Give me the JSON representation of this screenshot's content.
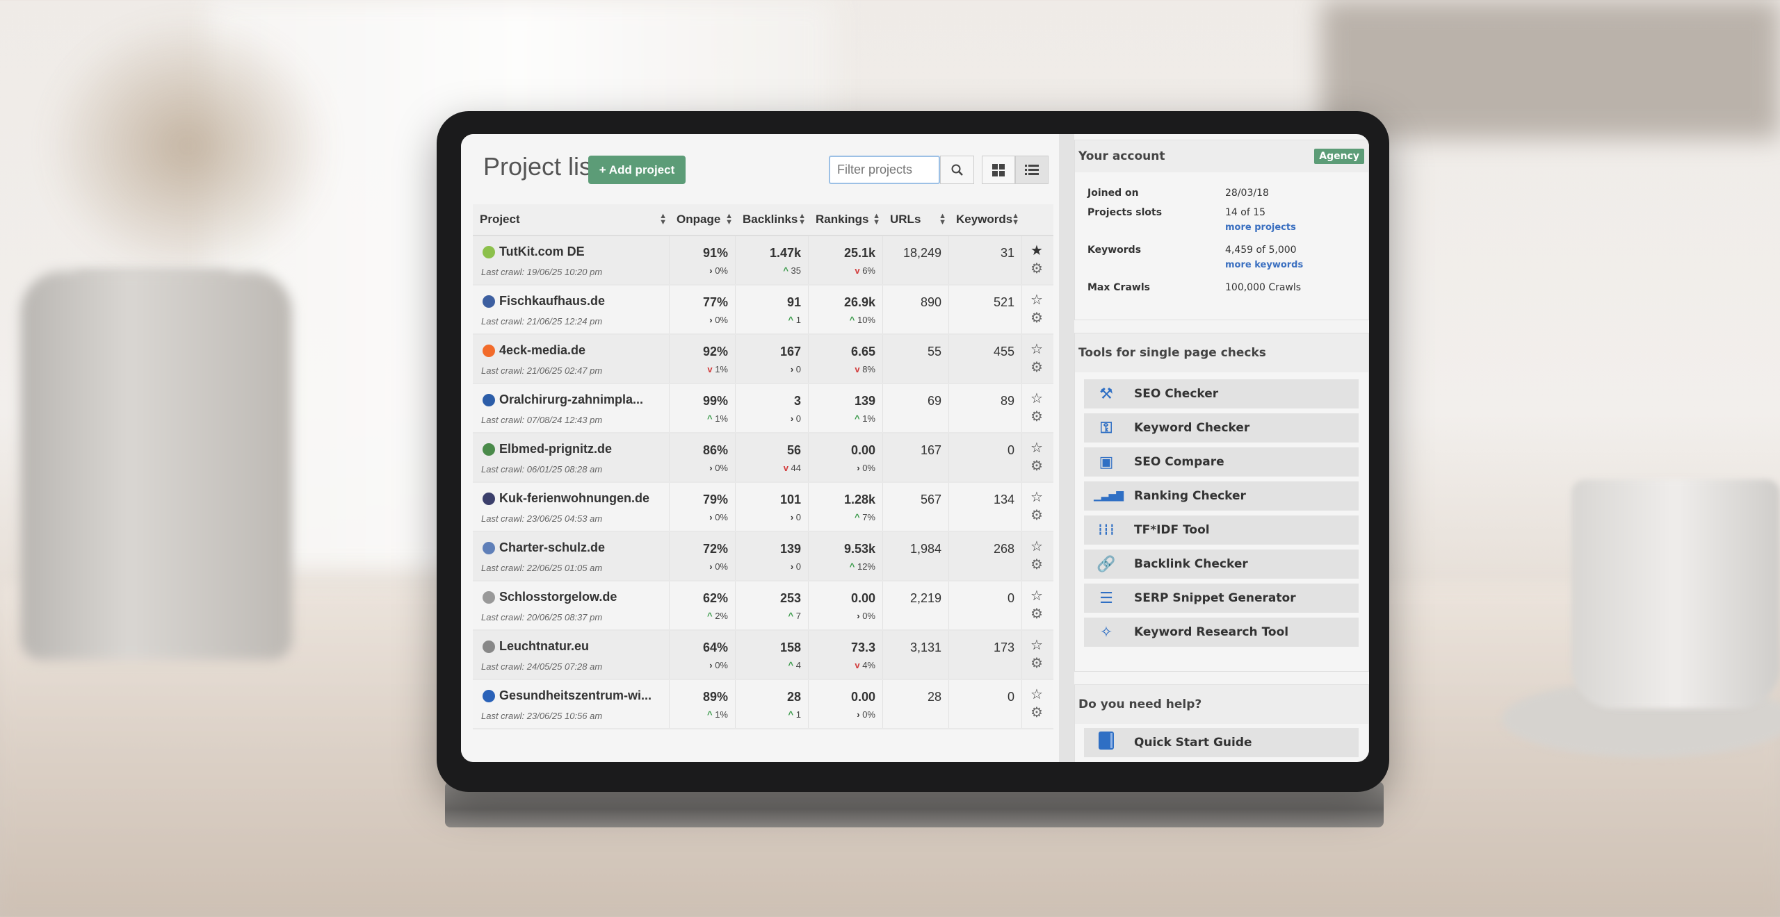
{
  "header": {
    "title": "Project list",
    "add_label": "+ Add project",
    "filter_placeholder": "Filter projects",
    "search_icon": "search-icon",
    "view_grid_icon": "grid-view-icon",
    "view_list_icon": "list-view-icon"
  },
  "table": {
    "columns": [
      "Project",
      "Onpage",
      "Backlinks",
      "Rankings",
      "URLs",
      "Keywords"
    ],
    "rows": [
      {
        "name": "TutKit.com DE",
        "icon_color": "#8cc04b",
        "crawl": "Last crawl: 19/06/25 10:20 pm",
        "onpage": "91%",
        "onpage_trend": "flat",
        "onpage_delta": "0%",
        "backlinks": "1.47k",
        "backlinks_trend": "up",
        "backlinks_delta": "35",
        "rankings": "25.1k",
        "rankings_trend": "down",
        "rankings_delta": "6%",
        "urls": "18,249",
        "keywords": "31",
        "starred": true
      },
      {
        "name": "Fischkaufhaus.de",
        "icon_color": "#3d5fa0",
        "crawl": "Last crawl: 21/06/25 12:24 pm",
        "onpage": "77%",
        "onpage_trend": "flat",
        "onpage_delta": "0%",
        "backlinks": "91",
        "backlinks_trend": "up",
        "backlinks_delta": "1",
        "rankings": "26.9k",
        "rankings_trend": "up",
        "rankings_delta": "10%",
        "urls": "890",
        "keywords": "521",
        "starred": false
      },
      {
        "name": "4eck-media.de",
        "icon_color": "#f26b2a",
        "crawl": "Last crawl: 21/06/25 02:47 pm",
        "onpage": "92%",
        "onpage_trend": "down",
        "onpage_delta": "1%",
        "backlinks": "167",
        "backlinks_trend": "flat",
        "backlinks_delta": "0",
        "rankings": "6.65",
        "rankings_trend": "down",
        "rankings_delta": "8%",
        "urls": "55",
        "keywords": "455",
        "starred": false
      },
      {
        "name": "Oralchirurg-zahnimpla...",
        "icon_color": "#2c5da8",
        "crawl": "Last crawl: 07/08/24 12:43 pm",
        "onpage": "99%",
        "onpage_trend": "up",
        "onpage_delta": "1%",
        "backlinks": "3",
        "backlinks_trend": "flat",
        "backlinks_delta": "0",
        "rankings": "139",
        "rankings_trend": "up",
        "rankings_delta": "1%",
        "urls": "69",
        "keywords": "89",
        "starred": false
      },
      {
        "name": "Elbmed-prignitz.de",
        "icon_color": "#4a8a4a",
        "crawl": "Last crawl: 06/01/25 08:28 am",
        "onpage": "86%",
        "onpage_trend": "flat",
        "onpage_delta": "0%",
        "backlinks": "56",
        "backlinks_trend": "down",
        "backlinks_delta": "44",
        "rankings": "0.00",
        "rankings_trend": "flat",
        "rankings_delta": "0%",
        "urls": "167",
        "keywords": "0",
        "starred": false
      },
      {
        "name": "Kuk-ferienwohnungen.de",
        "icon_color": "#3b3f6b",
        "crawl": "Last crawl: 23/06/25 04:53 am",
        "onpage": "79%",
        "onpage_trend": "flat",
        "onpage_delta": "0%",
        "backlinks": "101",
        "backlinks_trend": "flat",
        "backlinks_delta": "0",
        "rankings": "1.28k",
        "rankings_trend": "up",
        "rankings_delta": "7%",
        "urls": "567",
        "keywords": "134",
        "starred": false
      },
      {
        "name": "Charter-schulz.de",
        "icon_color": "#5f7fb8",
        "crawl": "Last crawl: 22/06/25 01:05 am",
        "onpage": "72%",
        "onpage_trend": "flat",
        "onpage_delta": "0%",
        "backlinks": "139",
        "backlinks_trend": "flat",
        "backlinks_delta": "0",
        "rankings": "9.53k",
        "rankings_trend": "up",
        "rankings_delta": "12%",
        "urls": "1,984",
        "keywords": "268",
        "starred": false
      },
      {
        "name": "Schlosstorgelow.de",
        "icon_color": "#999999",
        "crawl": "Last crawl: 20/06/25 08:37 pm",
        "onpage": "62%",
        "onpage_trend": "up",
        "onpage_delta": "2%",
        "backlinks": "253",
        "backlinks_trend": "up",
        "backlinks_delta": "7",
        "rankings": "0.00",
        "rankings_trend": "flat",
        "rankings_delta": "0%",
        "urls": "2,219",
        "keywords": "0",
        "starred": false
      },
      {
        "name": "Leuchtnatur.eu",
        "icon_color": "#888888",
        "crawl": "Last crawl: 24/05/25 07:28 am",
        "onpage": "64%",
        "onpage_trend": "flat",
        "onpage_delta": "0%",
        "backlinks": "158",
        "backlinks_trend": "up",
        "backlinks_delta": "4",
        "rankings": "73.3",
        "rankings_trend": "down",
        "rankings_delta": "4%",
        "urls": "3,131",
        "keywords": "173",
        "starred": false
      },
      {
        "name": "Gesundheitszentrum-wi...",
        "icon_color": "#2a62b8",
        "crawl": "Last crawl: 23/06/25 10:56 am",
        "onpage": "89%",
        "onpage_trend": "up",
        "onpage_delta": "1%",
        "backlinks": "28",
        "backlinks_trend": "up",
        "backlinks_delta": "1",
        "rankings": "0.00",
        "rankings_trend": "flat",
        "rankings_delta": "0%",
        "urls": "28",
        "keywords": "0",
        "starred": false
      }
    ]
  },
  "account": {
    "title": "Your account",
    "plan_badge": "Agency",
    "joined_label": "Joined on",
    "joined_value": "28/03/18",
    "slots_label": "Projects slots",
    "slots_value": "14 of 15",
    "more_projects": "more projects",
    "keywords_label": "Keywords",
    "keywords_value": "4,459 of 5,000",
    "more_keywords": "more keywords",
    "crawls_label": "Max Crawls",
    "crawls_value": "100,000 Crawls"
  },
  "tools": {
    "title": "Tools for single page checks",
    "items": [
      {
        "label": "SEO Checker",
        "icon": "wrench-icon"
      },
      {
        "label": "Keyword Checker",
        "icon": "keys-icon"
      },
      {
        "label": "SEO Compare",
        "icon": "compare-icon"
      },
      {
        "label": "Ranking Checker",
        "icon": "bar-signal-icon"
      },
      {
        "label": "TF*IDF Tool",
        "icon": "equalizer-icon"
      },
      {
        "label": "Backlink Checker",
        "icon": "link-icon"
      },
      {
        "label": "SERP Snippet Generator",
        "icon": "list-box-icon"
      },
      {
        "label": "Keyword Research Tool",
        "icon": "magic-wand-icon"
      }
    ]
  },
  "help": {
    "title": "Do you need help?",
    "items": [
      {
        "label": "Quick Start Guide",
        "icon": "book-icon"
      }
    ]
  },
  "colors": {
    "accent": "#5c9c77",
    "link": "#3a6fc0",
    "up": "#3a9a4a",
    "down": "#d23b3b",
    "tool_icon": "#2f6fc4"
  }
}
